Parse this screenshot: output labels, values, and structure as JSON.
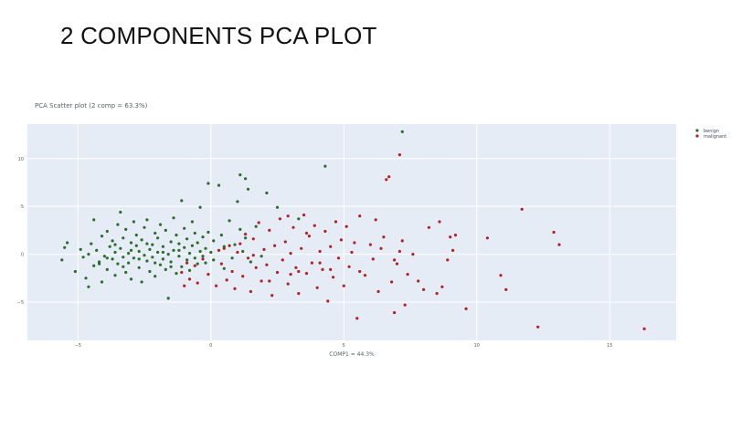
{
  "page": {
    "heading": "2 COMPONENTS PCA PLOT"
  },
  "chart_data": {
    "type": "scatter",
    "title": "PCA Scatter plot (2 comp = 63.3%)",
    "xlabel": "COMP1 = 44.3%",
    "ylabel": "",
    "xlim": [
      -6.9,
      17.5
    ],
    "ylim": [
      -9.0,
      13.6
    ],
    "x_ticks": [
      -5,
      0,
      5,
      10,
      15
    ],
    "y_ticks": [
      -5,
      0,
      5,
      10
    ],
    "grid": true,
    "legend_placement": "top-right",
    "colors": {
      "benign": "#2a6e2a",
      "malignant": "#b22222",
      "plot_bg": "#e5ecf6",
      "grid": "#ffffff"
    },
    "series": [
      {
        "name": "benign",
        "color": "#2a6e2a",
        "points": [
          [
            -5.6,
            -0.6
          ],
          [
            -5.5,
            0.7
          ],
          [
            -5.4,
            1.2
          ],
          [
            -5.1,
            -1.8
          ],
          [
            -4.9,
            0.5
          ],
          [
            -4.8,
            -0.3
          ],
          [
            -4.7,
            -2.5
          ],
          [
            -4.6,
            0.0
          ],
          [
            -4.6,
            -3.4
          ],
          [
            -4.5,
            1.1
          ],
          [
            -4.4,
            -1.2
          ],
          [
            -4.4,
            3.6
          ],
          [
            -4.3,
            0.4
          ],
          [
            -4.2,
            -0.8
          ],
          [
            -4.1,
            -2.9
          ],
          [
            -4.1,
            1.9
          ],
          [
            -4.0,
            -0.2
          ],
          [
            -3.9,
            2.4
          ],
          [
            -3.9,
            -1.6
          ],
          [
            -3.8,
            0.8
          ],
          [
            -3.7,
            -0.5
          ],
          [
            -3.7,
            1.4
          ],
          [
            -3.6,
            -2.2
          ],
          [
            -3.6,
            0.2
          ],
          [
            -3.5,
            3.1
          ],
          [
            -3.5,
            -1.0
          ],
          [
            -3.4,
            4.4
          ],
          [
            -3.4,
            0.6
          ],
          [
            -3.3,
            -0.3
          ],
          [
            -3.3,
            1.7
          ],
          [
            -3.2,
            -1.9
          ],
          [
            -3.2,
            2.6
          ],
          [
            -3.1,
            0.1
          ],
          [
            -3.1,
            -0.9
          ],
          [
            -3.0,
            1.2
          ],
          [
            -3.0,
            -2.6
          ],
          [
            -2.9,
            3.4
          ],
          [
            -2.9,
            -0.4
          ],
          [
            -2.8,
            0.9
          ],
          [
            -2.8,
            2.0
          ],
          [
            -2.7,
            -1.4
          ],
          [
            -2.7,
            0.3
          ],
          [
            -2.6,
            -2.9
          ],
          [
            -2.6,
            1.5
          ],
          [
            -2.5,
            -0.1
          ],
          [
            -2.5,
            2.8
          ],
          [
            -2.4,
            -0.7
          ],
          [
            -2.4,
            3.6
          ],
          [
            -2.3,
            0.5
          ],
          [
            -2.3,
            -1.8
          ],
          [
            -2.2,
            1.0
          ],
          [
            -2.2,
            -0.3
          ],
          [
            -2.1,
            2.2
          ],
          [
            -2.1,
            -2.3
          ],
          [
            -2.0,
            0.2
          ],
          [
            -2.0,
            1.7
          ],
          [
            -1.9,
            -1.1
          ],
          [
            -1.9,
            3.1
          ],
          [
            -1.8,
            -0.5
          ],
          [
            -1.8,
            0.8
          ],
          [
            -1.7,
            2.5
          ],
          [
            -1.7,
            -1.6
          ],
          [
            -1.6,
            0.0
          ],
          [
            -1.6,
            -4.6
          ],
          [
            -1.5,
            1.3
          ],
          [
            -1.5,
            -0.8
          ],
          [
            -1.4,
            3.8
          ],
          [
            -1.4,
            0.4
          ],
          [
            -1.3,
            -2.0
          ],
          [
            -1.3,
            2.0
          ],
          [
            -1.2,
            -0.2
          ],
          [
            -1.2,
            1.1
          ],
          [
            -1.1,
            5.6
          ],
          [
            -1.1,
            -1.3
          ],
          [
            -1.0,
            0.7
          ],
          [
            -1.0,
            2.7
          ],
          [
            -0.9,
            -0.6
          ],
          [
            -0.9,
            1.6
          ],
          [
            -0.8,
            0.1
          ],
          [
            -0.8,
            -1.7
          ],
          [
            -0.7,
            3.4
          ],
          [
            -0.7,
            0.9
          ],
          [
            -0.6,
            -0.4
          ],
          [
            -0.6,
            2.2
          ],
          [
            -0.5,
            1.2
          ],
          [
            -0.5,
            -1.0
          ],
          [
            -0.4,
            0.3
          ],
          [
            -0.4,
            4.9
          ],
          [
            -0.3,
            -0.2
          ],
          [
            -0.3,
            1.8
          ],
          [
            -0.2,
            0.6
          ],
          [
            -0.2,
            -0.9
          ],
          [
            -0.1,
            2.3
          ],
          [
            -0.1,
            7.4
          ],
          [
            0.0,
            0.2
          ],
          [
            0.1,
            1.4
          ],
          [
            0.1,
            -0.6
          ],
          [
            0.3,
            7.2
          ],
          [
            0.4,
            2.0
          ],
          [
            0.5,
            0.8
          ],
          [
            0.5,
            -1.5
          ],
          [
            0.7,
            3.5
          ],
          [
            0.8,
            -0.4
          ],
          [
            0.9,
            1.0
          ],
          [
            1.0,
            5.5
          ],
          [
            1.1,
            2.6
          ],
          [
            1.1,
            8.3
          ],
          [
            1.2,
            0.3
          ],
          [
            1.3,
            7.9
          ],
          [
            1.3,
            1.7
          ],
          [
            1.4,
            6.8
          ],
          [
            1.5,
            -0.8
          ],
          [
            1.7,
            2.9
          ],
          [
            1.9,
            -0.2
          ],
          [
            2.1,
            6.4
          ],
          [
            2.5,
            4.9
          ],
          [
            3.3,
            3.7
          ],
          [
            4.3,
            9.2
          ],
          [
            7.2,
            12.8
          ],
          [
            -4.2,
            -1.0
          ],
          [
            -3.9,
            -0.4
          ],
          [
            -3.6,
            1.0
          ],
          [
            -3.3,
            -1.3
          ],
          [
            -3.0,
            0.4
          ],
          [
            -2.7,
            -0.5
          ],
          [
            -2.4,
            1.1
          ],
          [
            -2.1,
            -0.9
          ],
          [
            -1.8,
            0.2
          ],
          [
            -1.5,
            -1.3
          ],
          [
            -1.2,
            0.4
          ]
        ]
      },
      {
        "name": "malignant",
        "color": "#b22222",
        "points": [
          [
            -1.1,
            -1.9
          ],
          [
            -1.0,
            -3.3
          ],
          [
            -0.9,
            -0.9
          ],
          [
            -0.8,
            -2.6
          ],
          [
            -0.6,
            -1.2
          ],
          [
            -0.5,
            -3.0
          ],
          [
            -0.3,
            -0.5
          ],
          [
            -0.1,
            -2.1
          ],
          [
            0.2,
            -3.3
          ],
          [
            0.3,
            0.4
          ],
          [
            0.4,
            -1.0
          ],
          [
            0.5,
            0.6
          ],
          [
            0.6,
            -2.7
          ],
          [
            0.7,
            0.9
          ],
          [
            0.8,
            -1.8
          ],
          [
            0.9,
            -3.6
          ],
          [
            1.0,
            0.2
          ],
          [
            1.1,
            1.1
          ],
          [
            1.2,
            -2.3
          ],
          [
            1.3,
            2.1
          ],
          [
            1.4,
            -0.4
          ],
          [
            1.5,
            -3.9
          ],
          [
            1.6,
            1.6
          ],
          [
            1.7,
            -1.4
          ],
          [
            1.8,
            3.3
          ],
          [
            1.9,
            -2.8
          ],
          [
            2.0,
            0.5
          ],
          [
            2.1,
            -1.1
          ],
          [
            2.2,
            2.5
          ],
          [
            2.3,
            -4.3
          ],
          [
            2.4,
            0.9
          ],
          [
            2.5,
            -1.9
          ],
          [
            2.6,
            3.7
          ],
          [
            2.7,
            -0.6
          ],
          [
            2.8,
            1.3
          ],
          [
            2.9,
            -3.1
          ],
          [
            3.0,
            0.1
          ],
          [
            3.1,
            2.8
          ],
          [
            3.2,
            -1.4
          ],
          [
            3.3,
            -4.1
          ],
          [
            3.4,
            0.6
          ],
          [
            3.5,
            4.1
          ],
          [
            3.6,
            -2.0
          ],
          [
            3.7,
            1.9
          ],
          [
            3.8,
            -0.9
          ],
          [
            3.9,
            3.0
          ],
          [
            4.0,
            -3.5
          ],
          [
            4.1,
            0.3
          ],
          [
            4.2,
            -1.6
          ],
          [
            4.3,
            2.4
          ],
          [
            4.4,
            -4.9
          ],
          [
            4.5,
            0.8
          ],
          [
            4.6,
            -2.4
          ],
          [
            4.7,
            3.4
          ],
          [
            4.8,
            -0.4
          ],
          [
            4.9,
            1.5
          ],
          [
            5.0,
            -3.3
          ],
          [
            5.1,
            2.9
          ],
          [
            5.2,
            -1.3
          ],
          [
            5.3,
            0.2
          ],
          [
            5.5,
            -6.7
          ],
          [
            5.6,
            4.0
          ],
          [
            5.8,
            -2.2
          ],
          [
            6.0,
            1.0
          ],
          [
            6.1,
            -0.5
          ],
          [
            6.2,
            3.6
          ],
          [
            6.3,
            -3.9
          ],
          [
            6.5,
            1.8
          ],
          [
            6.6,
            7.8
          ],
          [
            6.7,
            8.1
          ],
          [
            6.8,
            -2.9
          ],
          [
            6.9,
            -6.1
          ],
          [
            7.0,
            -1.0
          ],
          [
            7.1,
            0.3
          ],
          [
            7.2,
            1.4
          ],
          [
            7.3,
            -5.3
          ],
          [
            7.4,
            -2.1
          ],
          [
            7.6,
            0.0
          ],
          [
            8.0,
            -3.7
          ],
          [
            8.2,
            2.8
          ],
          [
            8.5,
            -4.1
          ],
          [
            8.7,
            -3.4
          ],
          [
            8.9,
            -0.6
          ],
          [
            9.0,
            1.8
          ],
          [
            9.1,
            0.4
          ],
          [
            9.2,
            2.0
          ],
          [
            9.6,
            -5.7
          ],
          [
            10.4,
            1.7
          ],
          [
            10.9,
            -2.2
          ],
          [
            11.1,
            -3.7
          ],
          [
            11.7,
            4.7
          ],
          [
            12.3,
            -7.6
          ],
          [
            12.9,
            2.3
          ],
          [
            13.1,
            1.0
          ],
          [
            16.3,
            -7.8
          ],
          [
            7.1,
            10.4
          ],
          [
            2.9,
            4.0
          ],
          [
            3.6,
            2.2
          ],
          [
            4.5,
            -1.6
          ],
          [
            5.4,
            1.2
          ],
          [
            6.4,
            0.6
          ],
          [
            3.0,
            -2.1
          ],
          [
            2.2,
            -2.8
          ],
          [
            1.6,
            -0.1
          ],
          [
            4.1,
            -0.9
          ],
          [
            5.6,
            -1.8
          ],
          [
            6.9,
            -0.6
          ],
          [
            8.6,
            3.4
          ],
          [
            7.8,
            -2.8
          ],
          [
            3.3,
            -1.8
          ]
        ]
      }
    ]
  }
}
